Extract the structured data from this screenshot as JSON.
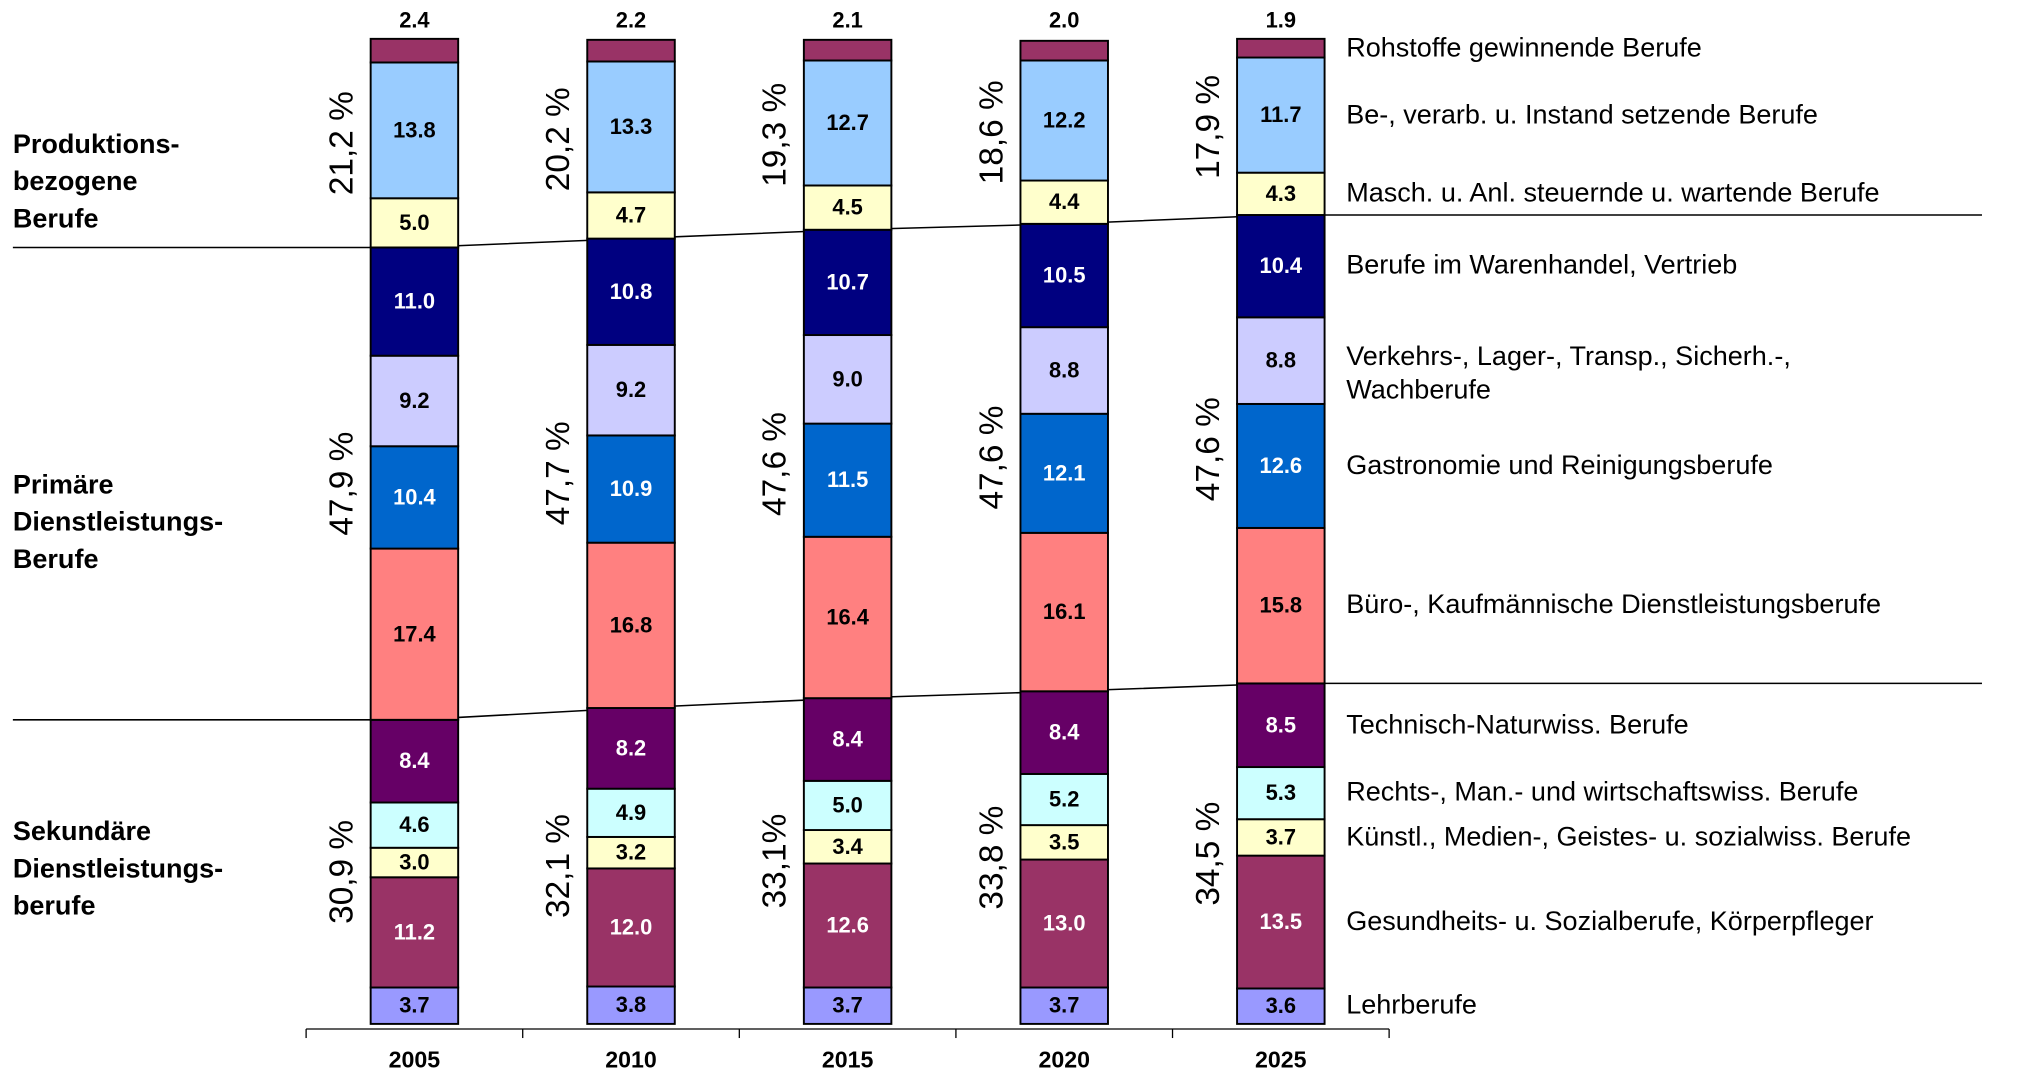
{
  "chart_data": {
    "type": "stacked-bar",
    "categories": [
      "2005",
      "2010",
      "2015",
      "2020",
      "2025"
    ],
    "ylim": [
      0,
      100
    ],
    "series": [
      {
        "name": "Lehrberufe",
        "color": "#9999ff",
        "label_color": "#000000",
        "values": [
          3.7,
          3.8,
          3.7,
          3.7,
          3.6
        ]
      },
      {
        "name": "Gesundheits- u. Sozialberufe, Körperpfleger",
        "color": "#993366",
        "label_color": "#ffffff",
        "values": [
          11.2,
          12.0,
          12.6,
          13.0,
          13.5
        ],
        "value_labels": [
          "11.2",
          "12.0",
          "12.6",
          "13.0",
          "13.5"
        ]
      },
      {
        "name": "Künstl., Medien-, Geistes- u. sozialwiss. Berufe",
        "color": "#ffffcc",
        "label_color": "#000000",
        "values": [
          3.0,
          3.2,
          3.4,
          3.5,
          3.7
        ],
        "value_labels": [
          "3.0",
          "3.2",
          "3.4",
          "3.5",
          "3.7"
        ]
      },
      {
        "name": "Rechts-, Man.- und wirtschaftswiss. Berufe",
        "color": "#ccffff",
        "label_color": "#000000",
        "values": [
          4.6,
          4.9,
          5.0,
          5.2,
          5.3
        ],
        "value_labels": [
          "4.6",
          "4.9",
          "5.0",
          "5.2",
          "5.3"
        ]
      },
      {
        "name": "Technisch-Naturwiss. Berufe",
        "color": "#660066",
        "label_color": "#ffffff",
        "values": [
          8.4,
          8.2,
          8.4,
          8.4,
          8.5
        ]
      },
      {
        "name": "Büro-, Kaufmännische Dienstleistungsberufe",
        "color": "#ff8080",
        "label_color": "#000000",
        "values": [
          17.4,
          16.8,
          16.4,
          16.1,
          15.8
        ]
      },
      {
        "name": "Gastronomie und Reinigungsberufe",
        "color": "#0066cc",
        "label_color": "#ffffff",
        "values": [
          10.4,
          10.9,
          11.5,
          12.1,
          12.6
        ]
      },
      {
        "name": "Verkehrs-, Lager-, Transp., Sicherh.-,\nWachberufe",
        "color": "#ccccff",
        "label_color": "#000000",
        "values": [
          9.2,
          9.2,
          9.0,
          8.8,
          8.8
        ],
        "value_labels": [
          "9.2",
          "9.2",
          "9.0",
          "8.8",
          "8.8"
        ]
      },
      {
        "name": "Berufe im Warenhandel, Vertrieb",
        "color": "#000080",
        "label_color": "#ffffff",
        "values": [
          11.0,
          10.8,
          10.7,
          10.5,
          10.4
        ],
        "value_labels": [
          "11.0",
          "10.8",
          "10.7",
          "10.5",
          "10.4"
        ]
      },
      {
        "name": "Masch. u. Anl. steuernde u. wartende Berufe",
        "color": "#ffffcc",
        "label_color": "#000000",
        "values": [
          5.0,
          4.7,
          4.5,
          4.4,
          4.3
        ],
        "value_labels": [
          "5.0",
          "4.7",
          "4.5",
          "4.4",
          "4.3"
        ]
      },
      {
        "name": "Be-, verarb. u. Instand setzende Berufe",
        "color": "#99ccff",
        "label_color": "#000000",
        "values": [
          13.8,
          13.3,
          12.7,
          12.2,
          11.7
        ]
      },
      {
        "name": "Rohstoffe gewinnende Berufe",
        "color": "#993366",
        "label_color": "#000000",
        "values": [
          2.4,
          2.2,
          2.1,
          2.0,
          1.9
        ],
        "value_labels": [
          "2.4",
          "2.2",
          "2.1",
          "2.0",
          "1.9"
        ]
      }
    ],
    "groups": [
      {
        "name": "Produktions-\nbezogene\nBerufe",
        "shares": [
          "21,2 %",
          "20,2 %",
          "19,3 %",
          "18,6 %",
          "17,9 %"
        ]
      },
      {
        "name": "Primäre\nDienstleistungs-\nBerufe",
        "shares": [
          "47,9 %",
          "47,7 %",
          "47,6 %",
          "47,6 %",
          "47,6 %"
        ]
      },
      {
        "name": "Sekundäre\nDienstleistungs-\nberufe",
        "shares": [
          "30,9 %",
          "32,1 %",
          "33,1%",
          "33,8 %",
          "34,5 %"
        ]
      }
    ]
  }
}
